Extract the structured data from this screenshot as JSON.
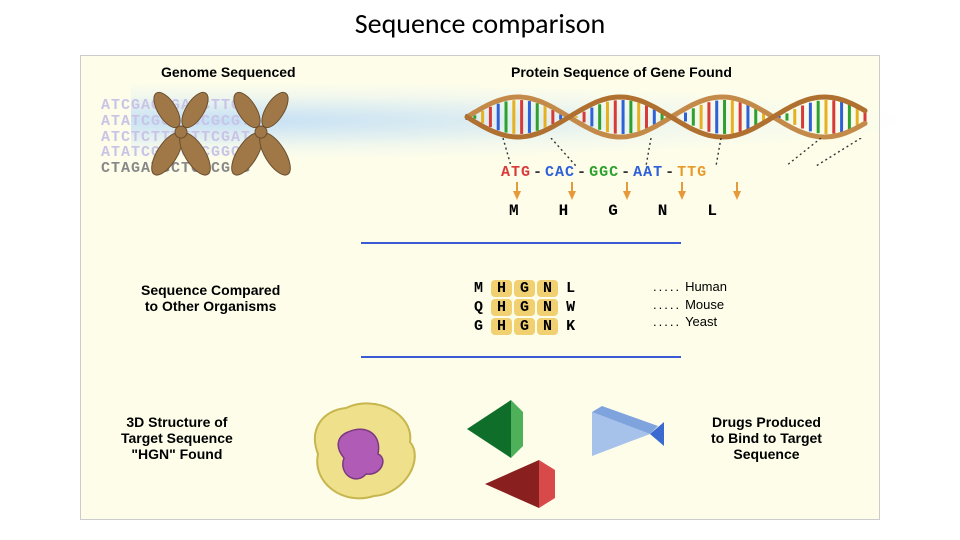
{
  "title": "Sequence comparison",
  "panel": {
    "bg": "#fdfdea",
    "headings": {
      "genome": "Genome Sequenced",
      "protein": "Protein Sequence of Gene Found",
      "compare": "Sequence Compared\nto Other Organisms",
      "struct": "3D Structure of\nTarget Sequence\n\"HGN\" Found",
      "drugs": "Drugs Produced\nto Bind to Target\nSequence"
    },
    "genome_lines": [
      "ATCGAGCGAGCTTG",
      "ATATCGCGGGCGCGT",
      "ATCTCTTTTTTCGAT",
      "ATATCGCGCGCGGCC",
      "CTAGATGCTCGCGGG"
    ],
    "chromosome_color": "#a07848",
    "helix": {
      "backbone_top": "#c48a4a",
      "backbone_bot": "#b07030",
      "rung_colors": [
        "#2e60d8",
        "#2ea02e",
        "#e7b020",
        "#d83a3a"
      ],
      "rungs": 52
    },
    "codons": [
      {
        "seq": "ATG",
        "color": "#d83a3a"
      },
      {
        "seq": "CAC",
        "color": "#2e60d8"
      },
      {
        "seq": "GGC",
        "color": "#2ea02e"
      },
      {
        "seq": "AAT",
        "color": "#2e60d8"
      },
      {
        "seq": "TTG",
        "color": "#e79a2a"
      }
    ],
    "arrow_color": "#e79a3a",
    "amino_acids": [
      "M",
      "H",
      "G",
      "N",
      "L"
    ],
    "separator_color": "#3b5bd6",
    "alignment": {
      "rows": [
        {
          "seq": [
            "M",
            "H",
            "G",
            "N",
            "L"
          ],
          "org": "Human"
        },
        {
          "seq": [
            "Q",
            "H",
            "G",
            "N",
            "W"
          ],
          "org": "Mouse"
        },
        {
          "seq": [
            "G",
            "H",
            "G",
            "N",
            "K"
          ],
          "org": "Yeast"
        }
      ],
      "highlight_cols": [
        1,
        2,
        3
      ],
      "highlight_bg": "#f0d070"
    },
    "shapes": {
      "blob_body": "#efe08b",
      "blob_outline": "#c7b54e",
      "blob_inner": "#b05bb5",
      "green_dark": "#0f6f2a",
      "green_light": "#4fb05a",
      "red_dark": "#8a1f1f",
      "red_light": "#d84a4a",
      "blue_dark": "#3a6ad0",
      "blue_light": "#a6c2ea"
    },
    "font": {
      "heading_size": 14,
      "mono_size": 15
    }
  }
}
